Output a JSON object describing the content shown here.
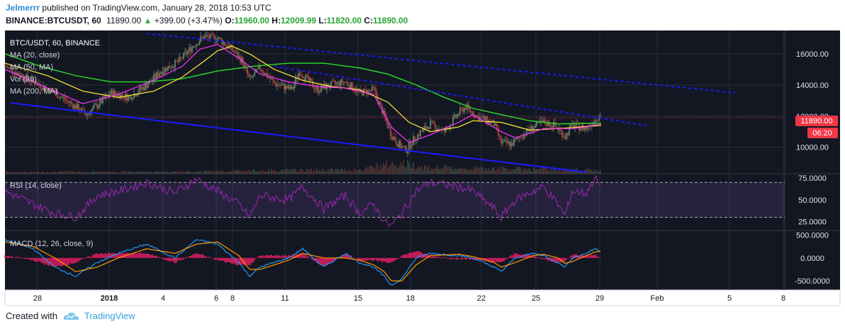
{
  "header": {
    "author": "Jelmerrr",
    "published_text": "published on TradingView.com, January 28, 2018 10:53 UTC",
    "symbol": "BINANCE:BTCUSDT, 60",
    "last": "11890.00",
    "change": "+399.00 (+3.47%)",
    "o_label": "O:",
    "o": "11960.00",
    "h_label": "H:",
    "h": "12009.99",
    "l_label": "L:",
    "l": "11820.00",
    "c_label": "C:",
    "c": "11890.00"
  },
  "legend": {
    "title": "BTC/USDT, 60, BINANCE",
    "ma20": "MA (20, close)",
    "ma50": "MA (50, MA)",
    "vol": "Vol (20)",
    "ma200": "MA (200, MA)",
    "rsi": "RSI (14, close)",
    "macd": "MACD (12, 26, close, 9)"
  },
  "price_badge": "11890.00",
  "time_badge": "06:20",
  "footer": {
    "created_with": "Created with",
    "brand": "TradingView"
  },
  "colors": {
    "bg": "#131722",
    "up": "#6ba583",
    "down": "#d75442",
    "ma20": "#ff33ff",
    "ma50": "#ffee33",
    "ma200": "#2bd12b",
    "trend": "#1a1aff",
    "rsi": "#9c27b0",
    "macd": "#2196f3",
    "signal": "#ff9800",
    "hist": "#e91e63",
    "badge": "#f23645"
  },
  "chart_data": {
    "type": "candlestick",
    "timeframe": "60",
    "x_ticks": [
      "28",
      "2018",
      "4",
      "6",
      "8",
      "11",
      "15",
      "18",
      "22",
      "25",
      "29",
      "Feb",
      "5",
      "8"
    ],
    "price_axis": {
      "ticks": [
        10000,
        12000,
        14000,
        16000
      ],
      "tick_labels": [
        "10000.00",
        "12000.00",
        "14000.00",
        "16000.00"
      ],
      "range": [
        8300,
        17500
      ]
    },
    "price_path": [
      [
        0,
        15200
      ],
      [
        40,
        14200
      ],
      [
        70,
        13500
      ],
      [
        100,
        12600
      ],
      [
        115,
        12100
      ],
      [
        130,
        12700
      ],
      [
        150,
        13500
      ],
      [
        175,
        13200
      ],
      [
        200,
        14000
      ],
      [
        220,
        14900
      ],
      [
        245,
        15500
      ],
      [
        265,
        16500
      ],
      [
        280,
        17100
      ],
      [
        300,
        17000
      ],
      [
        320,
        16300
      ],
      [
        335,
        15500
      ],
      [
        345,
        14300
      ],
      [
        360,
        15100
      ],
      [
        380,
        14100
      ],
      [
        405,
        13700
      ],
      [
        415,
        14900
      ],
      [
        440,
        13700
      ],
      [
        460,
        14000
      ],
      [
        480,
        14200
      ],
      [
        500,
        13500
      ],
      [
        520,
        13700
      ],
      [
        535,
        12000
      ],
      [
        545,
        10800
      ],
      [
        555,
        10200
      ],
      [
        565,
        9800
      ],
      [
        580,
        10700
      ],
      [
        600,
        11500
      ],
      [
        620,
        11000
      ],
      [
        640,
        12200
      ],
      [
        650,
        12600
      ],
      [
        665,
        12000
      ],
      [
        690,
        11500
      ],
      [
        700,
        10300
      ],
      [
        715,
        10200
      ],
      [
        730,
        10800
      ],
      [
        745,
        11300
      ],
      [
        760,
        11600
      ],
      [
        775,
        11400
      ],
      [
        790,
        10700
      ],
      [
        800,
        11400
      ],
      [
        820,
        11200
      ],
      [
        832,
        11800
      ],
      [
        838,
        12000
      ],
      [
        841,
        11890
      ]
    ],
    "volume_range": [
      0,
      1
    ],
    "volume_profile": [
      [
        0,
        0.15
      ],
      [
        100,
        0.2
      ],
      [
        200,
        0.2
      ],
      [
        300,
        0.25
      ],
      [
        400,
        0.35
      ],
      [
        500,
        0.4
      ],
      [
        540,
        0.9
      ],
      [
        560,
        1.0
      ],
      [
        600,
        0.6
      ],
      [
        700,
        0.5
      ],
      [
        800,
        0.4
      ],
      [
        841,
        0.35
      ]
    ],
    "ma20_path": [
      [
        0,
        15000
      ],
      [
        60,
        13800
      ],
      [
        110,
        12800
      ],
      [
        160,
        13400
      ],
      [
        210,
        14300
      ],
      [
        250,
        15200
      ],
      [
        275,
        16300
      ],
      [
        300,
        16600
      ],
      [
        330,
        15700
      ],
      [
        360,
        14700
      ],
      [
        400,
        14200
      ],
      [
        440,
        13900
      ],
      [
        480,
        13800
      ],
      [
        520,
        13400
      ],
      [
        545,
        11300
      ],
      [
        570,
        10300
      ],
      [
        600,
        10800
      ],
      [
        640,
        11600
      ],
      [
        660,
        12100
      ],
      [
        700,
        11000
      ],
      [
        720,
        10600
      ],
      [
        760,
        11200
      ],
      [
        800,
        11200
      ],
      [
        820,
        11300
      ],
      [
        841,
        11500
      ]
    ],
    "ma50_path": [
      [
        0,
        15400
      ],
      [
        60,
        14600
      ],
      [
        110,
        13600
      ],
      [
        160,
        13200
      ],
      [
        210,
        13600
      ],
      [
        250,
        14500
      ],
      [
        280,
        15500
      ],
      [
        300,
        16200
      ],
      [
        320,
        16500
      ],
      [
        345,
        16000
      ],
      [
        380,
        15000
      ],
      [
        420,
        14300
      ],
      [
        460,
        13900
      ],
      [
        500,
        13700
      ],
      [
        540,
        12900
      ],
      [
        570,
        11600
      ],
      [
        600,
        11000
      ],
      [
        640,
        11300
      ],
      [
        660,
        11700
      ],
      [
        700,
        11600
      ],
      [
        740,
        11100
      ],
      [
        780,
        11200
      ],
      [
        841,
        11400
      ]
    ],
    "ma200_path": [
      [
        0,
        16000
      ],
      [
        50,
        15200
      ],
      [
        100,
        14600
      ],
      [
        150,
        14200
      ],
      [
        200,
        14200
      ],
      [
        250,
        14400
      ],
      [
        300,
        14900
      ],
      [
        350,
        15200
      ],
      [
        400,
        15400
      ],
      [
        450,
        15400
      ],
      [
        500,
        15100
      ],
      [
        540,
        14700
      ],
      [
        580,
        14000
      ],
      [
        620,
        13200
      ],
      [
        660,
        12500
      ],
      [
        700,
        12100
      ],
      [
        740,
        11700
      ],
      [
        780,
        11500
      ],
      [
        841,
        11550
      ]
    ],
    "trend_upper": [
      [
        200,
        17300
      ],
      [
        1030,
        13500
      ]
    ],
    "trend_upper_mid": [
      [
        380,
        15200
      ],
      [
        905,
        11400
      ]
    ],
    "trend_lower": [
      [
        8,
        12850
      ],
      [
        820,
        8400
      ]
    ],
    "rsi": {
      "ticks": [
        25,
        50,
        75
      ],
      "tick_labels": [
        "25.0000",
        "50.0000",
        "75.0000"
      ],
      "range": [
        15,
        80
      ],
      "overbought": 70,
      "oversold": 30,
      "path": [
        [
          0,
          60
        ],
        [
          40,
          45
        ],
        [
          70,
          35
        ],
        [
          100,
          30
        ],
        [
          130,
          55
        ],
        [
          160,
          60
        ],
        [
          200,
          70
        ],
        [
          240,
          58
        ],
        [
          270,
          74
        ],
        [
          300,
          60
        ],
        [
          330,
          45
        ],
        [
          345,
          30
        ],
        [
          360,
          55
        ],
        [
          400,
          50
        ],
        [
          420,
          65
        ],
        [
          450,
          40
        ],
        [
          480,
          55
        ],
        [
          500,
          35
        ],
        [
          520,
          45
        ],
        [
          535,
          25
        ],
        [
          545,
          20
        ],
        [
          560,
          35
        ],
        [
          580,
          60
        ],
        [
          600,
          70
        ],
        [
          640,
          65
        ],
        [
          660,
          60
        ],
        [
          690,
          40
        ],
        [
          700,
          30
        ],
        [
          720,
          50
        ],
        [
          745,
          60
        ],
        [
          760,
          65
        ],
        [
          780,
          45
        ],
        [
          790,
          32
        ],
        [
          800,
          60
        ],
        [
          820,
          58
        ],
        [
          832,
          75
        ],
        [
          841,
          65
        ]
      ]
    },
    "macd": {
      "ticks": [
        -500,
        0,
        500
      ],
      "tick_labels": [
        "-500.0000",
        "0.0000",
        "500.0000"
      ],
      "range": [
        -700,
        600
      ],
      "macd_path": [
        [
          0,
          400
        ],
        [
          40,
          200
        ],
        [
          70,
          -200
        ],
        [
          100,
          -400
        ],
        [
          130,
          -100
        ],
        [
          160,
          100
        ],
        [
          200,
          300
        ],
        [
          240,
          0
        ],
        [
          270,
          400
        ],
        [
          300,
          300
        ],
        [
          330,
          -100
        ],
        [
          345,
          -400
        ],
        [
          360,
          -200
        ],
        [
          400,
          0
        ],
        [
          420,
          200
        ],
        [
          450,
          -200
        ],
        [
          480,
          100
        ],
        [
          500,
          -100
        ],
        [
          520,
          -200
        ],
        [
          535,
          -400
        ],
        [
          545,
          -600
        ],
        [
          560,
          -450
        ],
        [
          580,
          0
        ],
        [
          600,
          100
        ],
        [
          640,
          50
        ],
        [
          660,
          0
        ],
        [
          690,
          -200
        ],
        [
          700,
          -300
        ],
        [
          720,
          0
        ],
        [
          745,
          100
        ],
        [
          760,
          50
        ],
        [
          780,
          -100
        ],
        [
          790,
          -200
        ],
        [
          800,
          0
        ],
        [
          820,
          100
        ],
        [
          832,
          200
        ],
        [
          841,
          150
        ]
      ],
      "signal_path": [
        [
          0,
          350
        ],
        [
          40,
          250
        ],
        [
          70,
          0
        ],
        [
          100,
          -300
        ],
        [
          130,
          -200
        ],
        [
          160,
          0
        ],
        [
          200,
          200
        ],
        [
          240,
          100
        ],
        [
          270,
          300
        ],
        [
          300,
          350
        ],
        [
          330,
          50
        ],
        [
          345,
          -250
        ],
        [
          360,
          -250
        ],
        [
          400,
          -50
        ],
        [
          420,
          100
        ],
        [
          450,
          0
        ],
        [
          480,
          0
        ],
        [
          500,
          -50
        ],
        [
          520,
          -150
        ],
        [
          535,
          -300
        ],
        [
          545,
          -500
        ],
        [
          560,
          -500
        ],
        [
          580,
          -150
        ],
        [
          600,
          50
        ],
        [
          640,
          80
        ],
        [
          660,
          30
        ],
        [
          690,
          -100
        ],
        [
          700,
          -200
        ],
        [
          720,
          -100
        ],
        [
          745,
          50
        ],
        [
          760,
          80
        ],
        [
          780,
          0
        ],
        [
          790,
          -120
        ],
        [
          800,
          -80
        ],
        [
          820,
          50
        ],
        [
          832,
          130
        ],
        [
          841,
          150
        ]
      ]
    }
  }
}
